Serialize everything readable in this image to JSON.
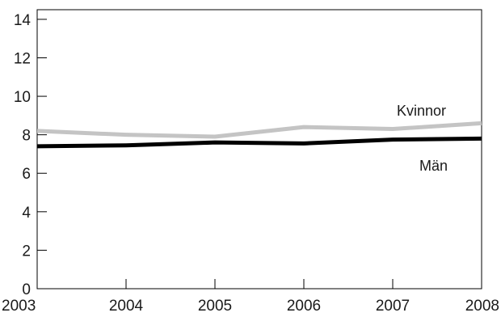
{
  "chart_data": {
    "type": "line",
    "title": "",
    "xlabel": "",
    "ylabel": "",
    "x": [
      2003,
      2004,
      2005,
      2006,
      2007,
      2008
    ],
    "xlim": [
      2003,
      2008
    ],
    "ylim": [
      0,
      14.5
    ],
    "x_ticks": [
      "2003",
      "2004",
      "2005",
      "2006",
      "2007",
      "2008"
    ],
    "y_ticks": [
      "0",
      "2",
      "4",
      "6",
      "8",
      "10",
      "12",
      "14"
    ],
    "grid": false,
    "legend": "none (series labelled directly on the lines)",
    "series": [
      {
        "name": "Kvinnor",
        "values": [
          8.2,
          8.0,
          7.9,
          8.4,
          8.3,
          8.6
        ],
        "color": "#c4c4c4"
      },
      {
        "name": "Män",
        "values": [
          7.4,
          7.45,
          7.6,
          7.55,
          7.75,
          7.8
        ],
        "color": "#000000"
      }
    ]
  }
}
